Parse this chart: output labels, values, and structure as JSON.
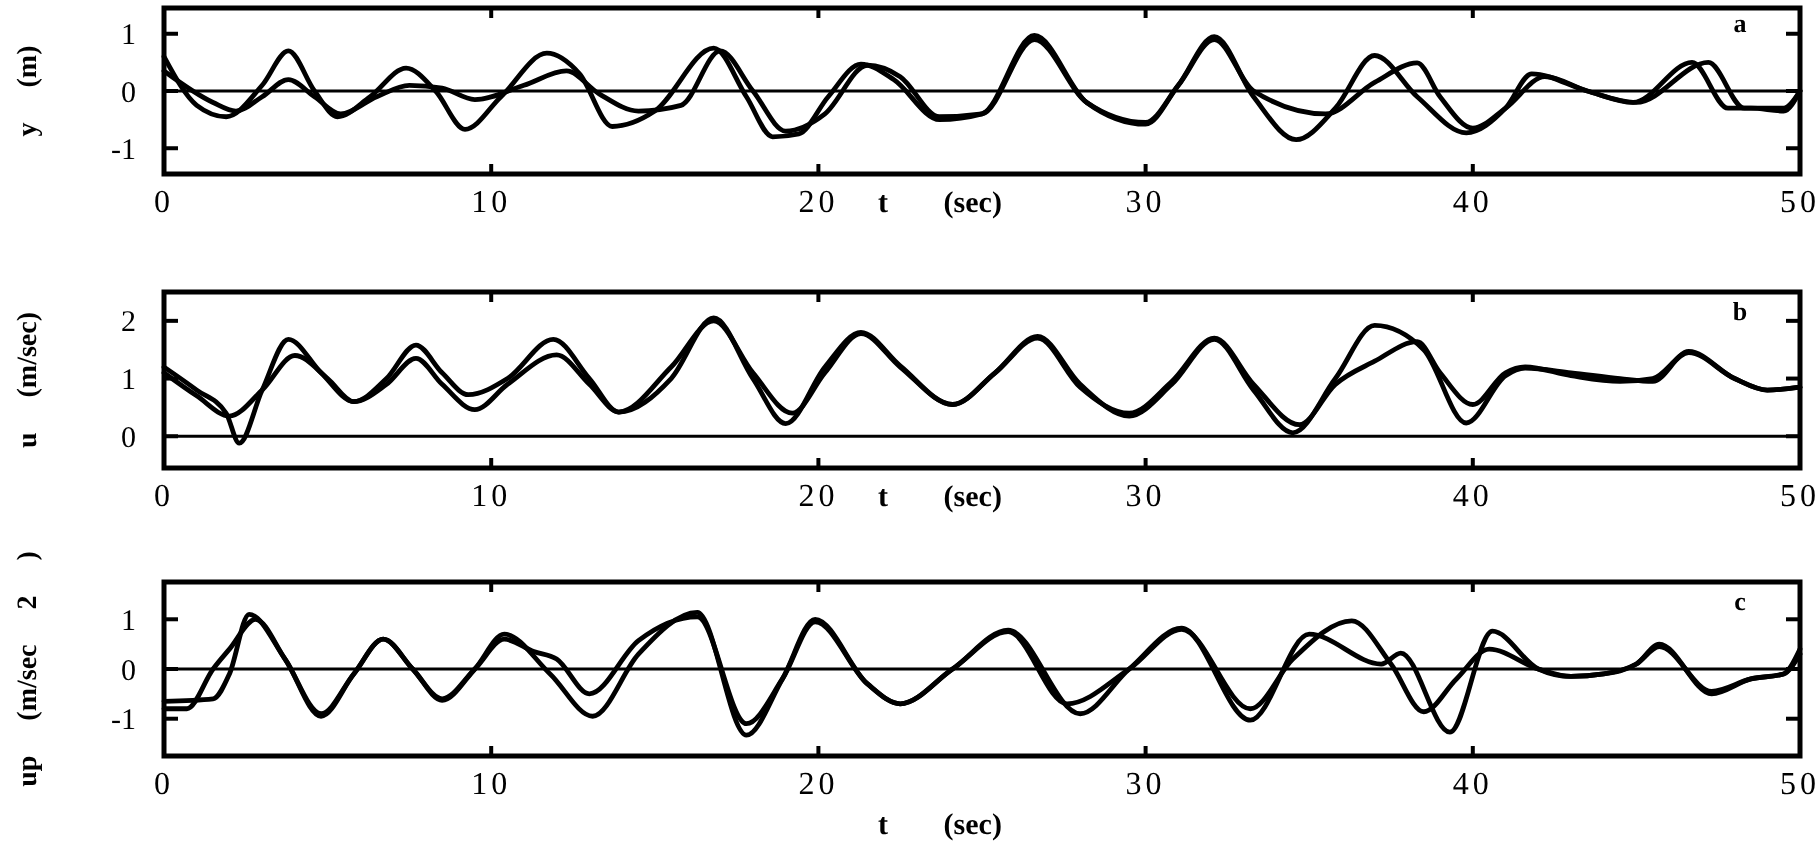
{
  "chart_data": [
    {
      "type": "line",
      "ylabel": "y (m)",
      "xlabel": "t (sec)",
      "annotations": [
        "a"
      ],
      "xlim": [
        0,
        50
      ],
      "xticks": [
        0,
        10,
        20,
        30,
        40,
        50
      ],
      "ylim": [
        -1.45,
        1.45
      ],
      "yticks": [
        -1,
        0,
        1
      ],
      "ref_lines": [
        {
          "axis": "y",
          "value": 0,
          "color": "#000000"
        }
      ],
      "series": [
        {
          "color": "#000000",
          "x": [
            0,
            1,
            1.9,
            3,
            3.8,
            4.6,
            5.3,
            6.3,
            7.4,
            8.3,
            9.2,
            10.3,
            11.7,
            12.7,
            13.7,
            15,
            16.8,
            17.8,
            18.6,
            19.4,
            20.3,
            21.3,
            22.3,
            23.7,
            25,
            26.6,
            28.2,
            30,
            31,
            32.1,
            33.3,
            34.6,
            35.8,
            37,
            38.3,
            39.8,
            41,
            41.8,
            43.5,
            44.9,
            46.7,
            47.8,
            48.5,
            49.5,
            50
          ],
          "values": [
            0.6,
            -0.25,
            -0.45,
            0.1,
            0.7,
            0.0,
            -0.45,
            -0.1,
            0.4,
            0.0,
            -0.67,
            -0.1,
            0.66,
            0.3,
            -0.62,
            -0.35,
            0.75,
            -0.1,
            -0.8,
            -0.75,
            -0.1,
            0.47,
            0.2,
            -0.5,
            -0.4,
            0.97,
            -0.2,
            -0.58,
            0.1,
            0.95,
            -0.1,
            -0.85,
            -0.3,
            0.62,
            -0.1,
            -0.73,
            -0.3,
            0.3,
            0.0,
            -0.2,
            0.5,
            -0.3,
            -0.3,
            -0.35,
            0.0
          ]
        },
        {
          "color": "#000000",
          "x": [
            0,
            1.5,
            2.2,
            3,
            3.8,
            4.6,
            5.4,
            6.5,
            7.5,
            8.5,
            9.5,
            11,
            12.3,
            13.3,
            14.5,
            15.8,
            17,
            18,
            19,
            20.2,
            21.5,
            22.5,
            23.7,
            25,
            26.6,
            28.2,
            30,
            31,
            32.1,
            33.3,
            35.5,
            37,
            38.3,
            39,
            40,
            41,
            42.2,
            43.5,
            45,
            47.2,
            48.3,
            49.5,
            50
          ],
          "values": [
            0.35,
            -0.2,
            -0.35,
            -0.1,
            0.2,
            -0.1,
            -0.4,
            -0.1,
            0.1,
            0.05,
            -0.15,
            0.1,
            0.35,
            -0.05,
            -0.35,
            -0.25,
            0.7,
            0.0,
            -0.7,
            -0.4,
            0.45,
            0.25,
            -0.45,
            -0.4,
            0.9,
            -0.2,
            -0.55,
            0.1,
            0.9,
            0.0,
            -0.4,
            0.15,
            0.49,
            -0.1,
            -0.65,
            -0.3,
            0.25,
            0.0,
            -0.2,
            0.5,
            -0.3,
            -0.3,
            0.0
          ]
        }
      ]
    },
    {
      "type": "line",
      "ylabel": "u (m/sec)",
      "xlabel": "t (sec)",
      "annotations": [
        "b"
      ],
      "xlim": [
        0,
        50
      ],
      "xticks": [
        0,
        10,
        20,
        30,
        40,
        50
      ],
      "ylim": [
        -0.55,
        2.5
      ],
      "yticks": [
        0,
        1,
        2
      ],
      "ref_lines": [
        {
          "axis": "y",
          "value": 0,
          "color": "#000000"
        }
      ],
      "series": [
        {
          "color": "#000000",
          "x": [
            0,
            1,
            1.9,
            2.3,
            3,
            3.8,
            4.8,
            5.8,
            6.8,
            7.7,
            8.5,
            9.3,
            10.5,
            11.9,
            13,
            13.9,
            15.5,
            16.8,
            18,
            19,
            20.2,
            21.3,
            22.5,
            24.1,
            25.4,
            26.7,
            28,
            29.5,
            30.8,
            32.1,
            33.3,
            34.5,
            35.8,
            37,
            38.5,
            39.8,
            41,
            41.6,
            43,
            44.5,
            45.5,
            46.6,
            48,
            49,
            50
          ],
          "values": [
            1.2,
            0.8,
            0.4,
            -0.12,
            0.8,
            1.68,
            1.1,
            0.6,
            1.0,
            1.58,
            1.1,
            0.72,
            1.0,
            1.68,
            1.0,
            0.42,
            1.0,
            2.05,
            1.0,
            0.22,
            1.2,
            1.8,
            1.22,
            0.55,
            1.1,
            1.73,
            0.9,
            0.35,
            0.9,
            1.68,
            0.8,
            0.06,
            1.0,
            1.92,
            1.5,
            0.23,
            1.05,
            1.18,
            1.1,
            1.0,
            0.95,
            1.47,
            1.0,
            0.8,
            0.85
          ]
        },
        {
          "color": "#000000",
          "x": [
            0,
            1,
            2,
            3,
            4,
            5,
            5.8,
            6.8,
            7.7,
            8.5,
            9.5,
            10.5,
            12,
            13,
            13.9,
            15.5,
            16.8,
            18,
            19.2,
            20.2,
            21.3,
            22.5,
            24.1,
            25.4,
            26.7,
            28,
            29.5,
            30.8,
            32.1,
            33.3,
            34.7,
            35.8,
            37,
            38.3,
            39,
            40,
            41,
            41.6,
            43,
            44.5,
            45.5,
            46.6,
            48,
            49,
            50
          ],
          "values": [
            1.1,
            0.7,
            0.35,
            0.8,
            1.4,
            1.0,
            0.6,
            0.9,
            1.35,
            0.9,
            0.46,
            0.9,
            1.41,
            0.9,
            0.42,
            1.2,
            2.0,
            1.1,
            0.4,
            1.1,
            1.78,
            1.2,
            0.55,
            1.1,
            1.7,
            0.85,
            0.4,
            0.95,
            1.7,
            0.9,
            0.2,
            0.9,
            1.3,
            1.64,
            1.1,
            0.55,
            1.1,
            1.2,
            1.05,
            0.95,
            1.0,
            1.45,
            1.0,
            0.8,
            0.85
          ]
        }
      ]
    },
    {
      "type": "line",
      "ylabel": "up (m/sec 2 )",
      "xlabel": "t (sec)",
      "annotations": [
        "c"
      ],
      "xlim": [
        0,
        50
      ],
      "xticks": [
        0,
        10,
        20,
        30,
        40,
        50
      ],
      "ylim": [
        -1.75,
        1.75
      ],
      "yticks": [
        -1,
        0,
        1
      ],
      "ref_lines": [
        {
          "axis": "y",
          "value": 0,
          "color": "#000000"
        }
      ],
      "series": [
        {
          "color": "#000000",
          "x": [
            0,
            1.5,
            2,
            2.6,
            3.7,
            4.8,
            5.8,
            6.7,
            7.6,
            8.5,
            9.5,
            10.4,
            11.8,
            13.1,
            14.5,
            16.3,
            17.8,
            18.9,
            19.9,
            21.5,
            22.5,
            24.1,
            25.8,
            28,
            29.5,
            31.1,
            33.2,
            35,
            37.2,
            37.8,
            39.3,
            40.6,
            42,
            43,
            44,
            45,
            45.7,
            47.3,
            48.5,
            49.5,
            50
          ],
          "values": [
            -0.65,
            -0.6,
            -0.1,
            1.1,
            0.2,
            -0.95,
            -0.1,
            0.6,
            0.0,
            -0.63,
            0.0,
            0.7,
            -0.1,
            -0.95,
            0.3,
            1.14,
            -1.33,
            -0.2,
            1.0,
            -0.3,
            -0.7,
            0.0,
            0.78,
            -0.9,
            0.0,
            0.82,
            -1.03,
            0.7,
            0.1,
            0.32,
            -1.27,
            0.76,
            0.0,
            -0.15,
            -0.1,
            0.1,
            0.5,
            -0.5,
            -0.2,
            -0.1,
            0.4
          ]
        },
        {
          "color": "#000000",
          "x": [
            0,
            0.7,
            1.5,
            2,
            2.8,
            3.7,
            4.8,
            5.8,
            6.7,
            7.6,
            8.5,
            9.5,
            10.4,
            11.3,
            12,
            13,
            14.5,
            16.3,
            17.8,
            18.9,
            19.9,
            21.5,
            22.5,
            24.1,
            25.8,
            27.6,
            29.5,
            31.1,
            33.2,
            34.5,
            36.3,
            37.5,
            38.5,
            39.5,
            40.5,
            42,
            43,
            44,
            45,
            45.7,
            47.3,
            48.5,
            49.5,
            50
          ],
          "values": [
            -0.8,
            -0.8,
            0.0,
            0.4,
            1.0,
            0.2,
            -0.9,
            -0.1,
            0.6,
            0.0,
            -0.6,
            0.0,
            0.6,
            0.35,
            0.2,
            -0.5,
            0.57,
            1.05,
            -1.1,
            -0.2,
            0.95,
            -0.3,
            -0.7,
            0.0,
            0.75,
            -0.7,
            0.0,
            0.8,
            -0.8,
            0.2,
            0.97,
            0.1,
            -0.86,
            -0.2,
            0.4,
            0.0,
            -0.15,
            -0.1,
            0.1,
            0.45,
            -0.45,
            -0.2,
            -0.1,
            0.3
          ]
        }
      ]
    }
  ]
}
